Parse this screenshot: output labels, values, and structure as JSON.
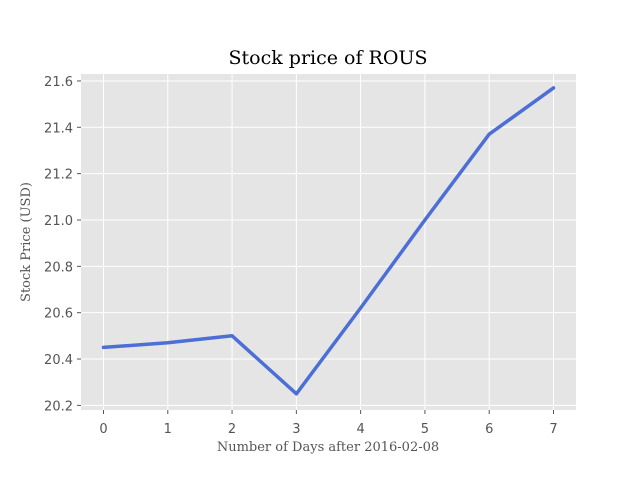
{
  "chart_data": {
    "type": "line",
    "title": "Stock price of ROUS",
    "xlabel": "Number of Days after 2016-02-08",
    "ylabel": "Stock Price (USD)",
    "x": [
      0,
      1,
      2,
      3,
      4,
      5,
      6,
      7
    ],
    "xticks": [
      "0",
      "1",
      "2",
      "3",
      "4",
      "5",
      "6",
      "7"
    ],
    "yticks": [
      "20.2",
      "20.4",
      "20.6",
      "20.8",
      "21.0",
      "21.2",
      "21.4",
      "21.6"
    ],
    "series": [
      {
        "values": [
          20.45,
          20.47,
          20.5,
          20.25,
          20.62,
          21.0,
          21.37,
          21.57
        ]
      }
    ],
    "xlim": [
      -0.35,
      7.35
    ],
    "ylim": [
      20.18,
      21.63
    ],
    "grid": true,
    "colors": {
      "line": "#4c6fd6",
      "plot_background": "#e5e5e5",
      "grid": "#ffffff"
    }
  }
}
